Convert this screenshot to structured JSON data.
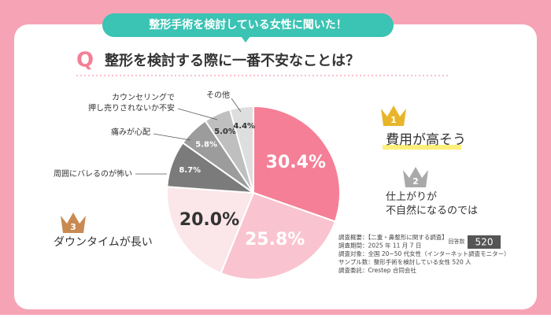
{
  "header": {
    "banner": "整形手術を検討している女性に聞いた！",
    "q_mark": "Q"
  },
  "chart_data": {
    "type": "pie",
    "title": "整形を検討する際に一番不安なことは？",
    "categories": [
      "費用が高そう",
      "仕上がりが\n不自然になるのでは",
      "ダウンタイムが長い",
      "周囲にバレるのが怖い",
      "痛みが心配",
      "カウンセリングで\n押し売りされないか不安",
      "その他"
    ],
    "values": [
      30.4,
      25.8,
      20.0,
      8.7,
      5.8,
      5.0,
      4.4
    ],
    "value_labels": [
      "30.4%",
      "25.8%",
      "20.0%",
      "8.7%",
      "5.8%",
      "5.0%",
      "4.4%"
    ],
    "colors": [
      "#f47f96",
      "#f9c4cf",
      "#fbe6ea",
      "#7b7b7b",
      "#9c9c9c",
      "#bfbfbf",
      "#dedede"
    ],
    "ranks": [
      "1",
      "2",
      "3",
      null,
      null,
      null,
      null
    ]
  },
  "survey": {
    "notes": [
      "調査概要：【二重・鼻整形に関する調査】",
      "調査期間：2025 年 11 月 7 日",
      "調査対象：全国 20~50 代女性（インターネット調査モニター）",
      "サンプル数：整形手術を検討している女性 520 人",
      "調査委託：Crestep 合同会社"
    ],
    "count_label": "回答数",
    "count": "520"
  }
}
